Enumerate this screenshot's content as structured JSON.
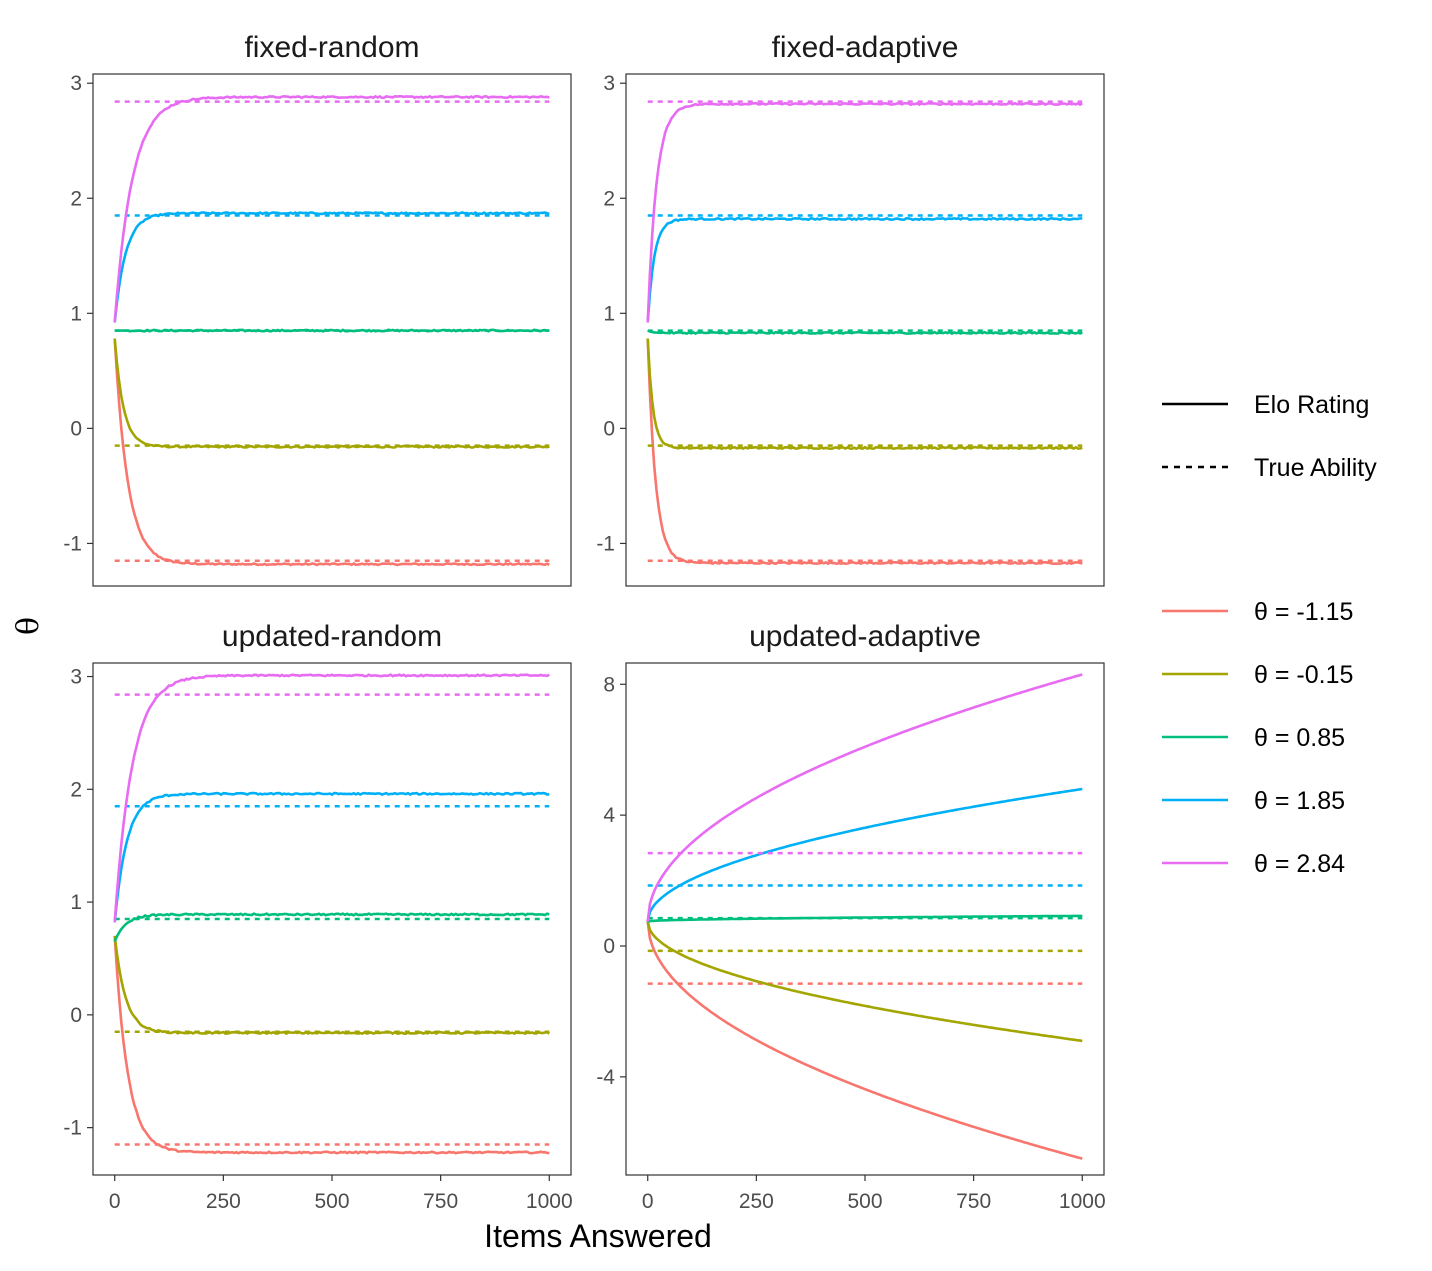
{
  "chart_data": {
    "type": "line",
    "xlabel": "Items Answered",
    "ylabel": "θ",
    "linetype_legend": [
      {
        "label": "Elo Rating",
        "style": "solid"
      },
      {
        "label": "True Ability",
        "style": "dashed"
      }
    ],
    "series_legend": [
      {
        "label": "θ = -1.15",
        "theta": -1.15,
        "color": "#F8766D"
      },
      {
        "label": "θ = -0.15",
        "theta": -0.15,
        "color": "#A3A500"
      },
      {
        "label": "θ = 0.85",
        "theta": 0.85,
        "color": "#00BF7D"
      },
      {
        "label": "θ = 1.85",
        "theta": 1.85,
        "color": "#00B0F6"
      },
      {
        "label": "θ = 2.84",
        "theta": 2.84,
        "color": "#E76BF3"
      }
    ],
    "x_ticks": [
      0,
      250,
      500,
      750,
      1000
    ],
    "xlim": [
      -50,
      1050
    ],
    "panels": [
      {
        "title": "fixed-random",
        "ylim": [
          -1.37,
          3.08
        ],
        "y_ticks": [
          -1,
          0,
          1,
          2,
          3
        ],
        "y_tick_labels": [
          "-1",
          "0",
          "1",
          "2",
          "3"
        ],
        "series": [
          {
            "theta": -1.15,
            "start": 0.78,
            "end": -1.18,
            "k": 30
          },
          {
            "theta": -0.15,
            "start": 0.78,
            "end": -0.16,
            "k": 20
          },
          {
            "theta": 0.85,
            "start": 0.85,
            "end": 0.85,
            "k": 15
          },
          {
            "theta": 1.85,
            "start": 0.92,
            "end": 1.87,
            "k": 25
          },
          {
            "theta": 2.84,
            "start": 0.92,
            "end": 2.88,
            "k": 40
          }
        ]
      },
      {
        "title": "fixed-adaptive",
        "ylim": [
          -1.37,
          3.08
        ],
        "y_ticks": [
          -1,
          0,
          1,
          2,
          3
        ],
        "y_tick_labels": [
          "-1",
          "0",
          "1",
          "2",
          "3"
        ],
        "series": [
          {
            "theta": -1.15,
            "start": 0.78,
            "end": -1.17,
            "k": 18
          },
          {
            "theta": -0.15,
            "start": 0.78,
            "end": -0.17,
            "k": 12
          },
          {
            "theta": 0.85,
            "start": 0.85,
            "end": 0.83,
            "k": 10
          },
          {
            "theta": 1.85,
            "start": 0.92,
            "end": 1.82,
            "k": 15
          },
          {
            "theta": 2.84,
            "start": 0.92,
            "end": 2.82,
            "k": 20
          }
        ]
      },
      {
        "title": "updated-random",
        "ylim": [
          -1.42,
          3.12
        ],
        "y_ticks": [
          -1,
          0,
          1,
          2,
          3
        ],
        "y_tick_labels": [
          "-1",
          "0",
          "1",
          "2",
          "3"
        ],
        "series": [
          {
            "theta": -1.15,
            "start": 0.7,
            "end": -1.22,
            "k": 30
          },
          {
            "theta": -0.15,
            "start": 0.7,
            "end": -0.16,
            "k": 25
          },
          {
            "theta": 0.85,
            "start": 0.65,
            "end": 0.89,
            "k": 25
          },
          {
            "theta": 1.85,
            "start": 0.82,
            "end": 1.96,
            "k": 28
          },
          {
            "theta": 2.84,
            "start": 0.82,
            "end": 3.01,
            "k": 40
          }
        ]
      },
      {
        "title": "updated-adaptive",
        "ylim": [
          -7.0,
          8.65
        ],
        "y_ticks": [
          -4,
          0,
          4,
          8
        ],
        "y_tick_labels": [
          "-4",
          "0",
          "4",
          "8"
        ],
        "series": [
          {
            "theta": -1.15,
            "start": 0.75,
            "end": -6.5,
            "shape": "sqrt"
          },
          {
            "theta": -0.15,
            "start": 0.75,
            "end": -2.9,
            "shape": "sqrt"
          },
          {
            "theta": 0.85,
            "start": 0.75,
            "end": 0.92,
            "shape": "sqrt"
          },
          {
            "theta": 1.85,
            "start": 0.75,
            "end": 4.8,
            "shape": "sqrt"
          },
          {
            "theta": 2.84,
            "start": 0.75,
            "end": 8.3,
            "shape": "sqrt"
          }
        ]
      }
    ]
  }
}
